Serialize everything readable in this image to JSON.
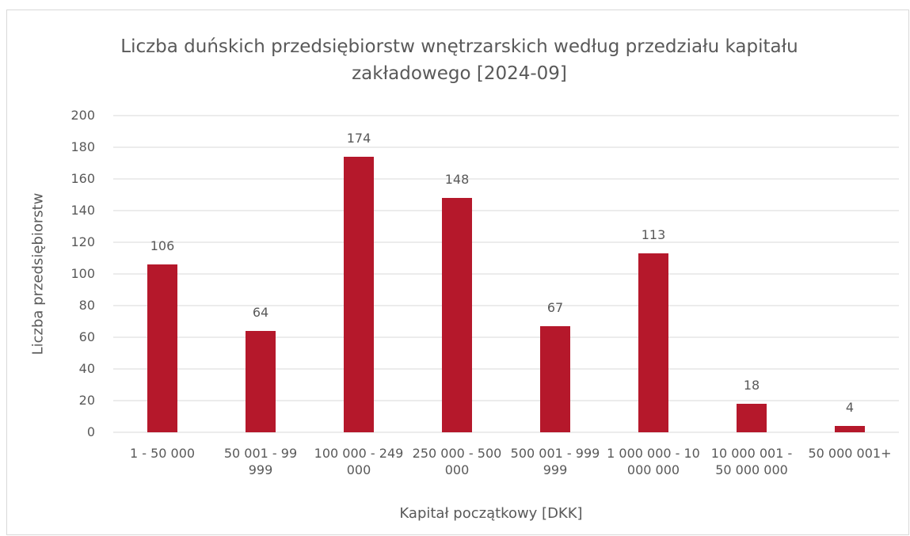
{
  "chart_data": {
    "type": "bar",
    "title": "Liczba duńskich przedsiębiorstw wnętrzarskich według przedziału kapitału zakładowego [2024-09]",
    "x_label": "Kapitał początkowy [DKK]",
    "y_label": "Liczba przedsiębiorstw",
    "categories": [
      "1 - 50 000",
      "50 001 - 99 999",
      "100 000 - 249 000",
      "250 000 - 500 000",
      "500 001 - 999 999",
      "1 000 000 - 10 000 000",
      "10 000 001 - 50 000 000",
      "50 000 001+"
    ],
    "values": [
      106,
      64,
      174,
      148,
      67,
      113,
      18,
      4
    ],
    "color": "#b5182b",
    "ylim": [
      0,
      200
    ],
    "yticks": [
      0,
      20,
      40,
      60,
      80,
      100,
      120,
      140,
      160,
      180,
      200
    ],
    "grid": true
  }
}
